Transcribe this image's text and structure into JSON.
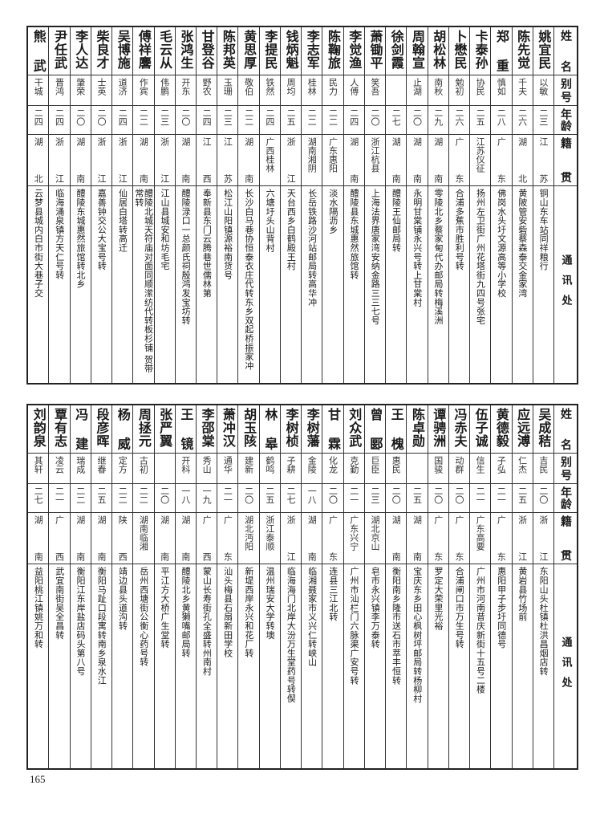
{
  "headers": {
    "name": "姓名",
    "alias": "别号",
    "age": "年龄",
    "origin": "籍贯",
    "address": "通讯处"
  },
  "page_number": "165",
  "top_table": [
    {
      "name": "姚宜民",
      "alias": "以敏",
      "age": "二三",
      "origin": "江苏",
      "address": "铜山东车站同祥粮行"
    },
    {
      "name": "陈先觉",
      "alias": "千夫",
      "age": "二六",
      "origin": "湖北",
      "address": "黄陂管安砦蔡森泰交金家湾"
    },
    {
      "name": "郑重",
      "alias": "慎如",
      "age": "二八",
      "origin": "广东",
      "address": "佛岗水头圩文源高等小学校"
    },
    {
      "name": "卡泰孙",
      "alias": "协民",
      "age": "二五",
      "origin": "江苏仪征",
      "address": "扬州左卫街广州花塔街九四号张宅"
    },
    {
      "name": "卜懋民",
      "alias": "勉初",
      "age": "二六",
      "origin": "广东",
      "address": "合浦多蕉市胜利号转"
    },
    {
      "name": "胡松林",
      "alias": "南秋",
      "age": "二九",
      "origin": "湖南",
      "address": "零陵北乡蔡家甸代办邮局转梅溪洲"
    },
    {
      "name": "周翰宣",
      "alias": "止湖",
      "age": "二〇",
      "origin": "湖南",
      "address": "永明甘棠铺永兴号转上甘棠村"
    },
    {
      "name": "徐剑霞",
      "alias": "",
      "age": "二七",
      "origin": "湖南",
      "address": "醴陵王仙邮局转"
    },
    {
      "name": "萧锄平",
      "alias": "笑吾",
      "age": "二〇",
      "origin": "浙江杭县",
      "address": "上海法界唐家湾安纳金路三三七号"
    },
    {
      "name": "李觉渔",
      "alias": "人傅",
      "age": "二四",
      "origin": "湖南",
      "address": "醴陵县东城惠然旅馆转"
    },
    {
      "name": "陈鞠旅",
      "alias": "民力",
      "age": "二二",
      "origin": "广东惠阳",
      "address": "淡水隔沥乡"
    },
    {
      "name": "李志军",
      "alias": "桂林",
      "age": "二二",
      "origin": "湖南湘阴",
      "address": "长岳铁路沙河站邮局转高华冲"
    },
    {
      "name": "钱炳魁",
      "alias": "周均",
      "age": "二五",
      "origin": "浙江",
      "address": "天台西乡白鹤殿王村"
    },
    {
      "name": "李提民",
      "alias": "铁然",
      "age": "二四",
      "origin": "广西桂林",
      "address": "六塘圩头山背村"
    },
    {
      "name": "黄思厚",
      "alias": "敬伯",
      "age": "二二",
      "origin": "湖南",
      "address": "长沙白马巷协恒泰衣庄代转东乡双起桥振家冲"
    },
    {
      "name": "陈邦英",
      "alias": "玉珊",
      "age": "二三",
      "origin": "江苏",
      "address": "松江山阳镇源裕南货号"
    },
    {
      "name": "甘登谷",
      "alias": "野农",
      "age": "二四",
      "origin": "江西",
      "address": "奉新县东门云腾巷世儒林第"
    },
    {
      "name": "张鸿生",
      "alias": "开东",
      "age": "二〇",
      "origin": "湖南",
      "address": "醴陵渌口一总颜氏祠殷鸿发宝坊转"
    },
    {
      "name": "毛云从",
      "alias": "伟鹏",
      "age": "二三",
      "origin": "浙江",
      "address": "江山县城安和坊毛宅"
    },
    {
      "name": "傅祥麐",
      "alias": "作宾",
      "age": "二二",
      "origin": "湖南",
      "address": "醴陵北城天符庙对面同顺潆纺代转板杉铺 贺带常转"
    },
    {
      "name": "吴博施",
      "alias": "道济",
      "age": "二四",
      "origin": "浙江",
      "address": "仙居白塔转高迁"
    },
    {
      "name": "柴良才",
      "alias": "士英",
      "age": "二〇",
      "origin": "浙江",
      "address": "嘉善钟交公大宝号转"
    },
    {
      "name": "李人达",
      "alias": "肇荣",
      "age": "二〇",
      "origin": "湖南",
      "address": "醴陵东城惠然旅馆转北乡"
    },
    {
      "name": "尹任武",
      "alias": "晋鸿",
      "age": "二四",
      "origin": "浙江",
      "address": "临海涌泉镇方天仁号转"
    },
    {
      "name": "熊武",
      "alias": "干城",
      "age": "二四",
      "origin": "湖北",
      "address": "云梦县城内白市街大巷子交"
    }
  ],
  "bottom_table": [
    {
      "name": "吴成秸",
      "alias": "吉民",
      "age": "二〇",
      "origin": "浙江",
      "address": "东阳山头杜镇杜洪昌烟店转"
    },
    {
      "name": "应远溥",
      "alias": "仁杰",
      "age": "二五",
      "origin": "浙江",
      "address": "黄岩县竹场前"
    },
    {
      "name": "黄德毅",
      "alias": "子弘",
      "age": "二一",
      "origin": "广东",
      "address": "惠阳甲子步圩同德号"
    },
    {
      "name": "伍子诚",
      "alias": "信生",
      "age": "二一",
      "origin": "广东高要",
      "address": "广州市河南昔庆新街十五号二楼"
    },
    {
      "name": "冯赤夫",
      "alias": "动群",
      "age": "二〇",
      "origin": "广东",
      "address": "合浦闸口市万生号转"
    },
    {
      "name": "谭骋洲",
      "alias": "国骏",
      "age": "二〇",
      "origin": "广东",
      "address": "罗定大荣里光裕"
    },
    {
      "name": "陈卓勋",
      "alias": "",
      "age": "二五",
      "origin": "湖南",
      "address": "宝庆东乡田心枫树坪邮局转杨柳村"
    },
    {
      "name": "王槐",
      "alias": "惠民",
      "age": "二〇",
      "origin": "湖南",
      "address": "衡阳南乡隆市送石市萃丰恒转"
    },
    {
      "name": "曾郾",
      "alias": "巨臣",
      "age": "二三",
      "origin": "湖北京山",
      "address": "皂市永兴镇李万泰转"
    },
    {
      "name": "刘众武",
      "alias": "克勤",
      "age": "二一",
      "origin": "广东兴宁",
      "address": "广州市汕栏门六脉渠广安号转"
    },
    {
      "name": "甘霖",
      "alias": "化龙",
      "age": "二〇",
      "origin": "广东",
      "address": "连县三江北转"
    },
    {
      "name": "李树藩",
      "alias": "金陵",
      "age": "一八",
      "origin": "湖南",
      "address": "临湘聂家市义兴仁转峡山"
    },
    {
      "name": "李树桢",
      "alias": "子耕",
      "age": "二七",
      "origin": "浙江",
      "address": "临海海门北岸大汾万生堂药号转偰"
    },
    {
      "name": "林皋",
      "alias": "鹤鸣",
      "age": "二五",
      "origin": "浙江泰顺",
      "address": "温州瑞安大学转墺"
    },
    {
      "name": "胡玉陔",
      "alias": "建新",
      "age": "二〇",
      "origin": "湖北沔阳",
      "address": "新堤西岸永兴和花厂转"
    },
    {
      "name": "萧冲汉",
      "alias": "通华",
      "age": "二一",
      "origin": "广东",
      "address": "汕头梅县石扇新田学校"
    },
    {
      "name": "李邵棠",
      "alias": "秀山",
      "age": "一九",
      "origin": "广西",
      "address": "蒙山长寿街孔全盛转州南村"
    },
    {
      "name": "王镜",
      "alias": "开科",
      "age": "一八",
      "origin": "湖南",
      "address": "醴陵北乡黄獭嘴邮局转"
    },
    {
      "name": "张严翼",
      "alias": "",
      "age": "二〇",
      "origin": "湖南",
      "address": "平江方大桥广生堂转"
    },
    {
      "name": "周拯元",
      "alias": "古初",
      "age": "二二",
      "origin": "湖南临湘",
      "address": "岳州西塘街公衡心药号转"
    },
    {
      "name": "杨威",
      "alias": "定方",
      "age": "二二",
      "origin": "陕西",
      "address": "靖边县头道沟转"
    },
    {
      "name": "段彦晖",
      "alias": "继春",
      "age": "二五",
      "origin": "湖南",
      "address": "衡阳马趾口段寓转南乡泉水江"
    },
    {
      "name": "冯建",
      "alias": "瑞成",
      "age": "二二",
      "origin": "湖南",
      "address": "衡阳江东岸盐店码头第八号"
    },
    {
      "name": "覃有志",
      "alias": "凌云",
      "age": "二一",
      "origin": "广西",
      "address": "武宜南街吴全昌转"
    },
    {
      "name": "刘韵泉",
      "alias": "其轩",
      "age": "二七",
      "origin": "湖南",
      "address": "益阳桃江镇姚万和转"
    }
  ]
}
